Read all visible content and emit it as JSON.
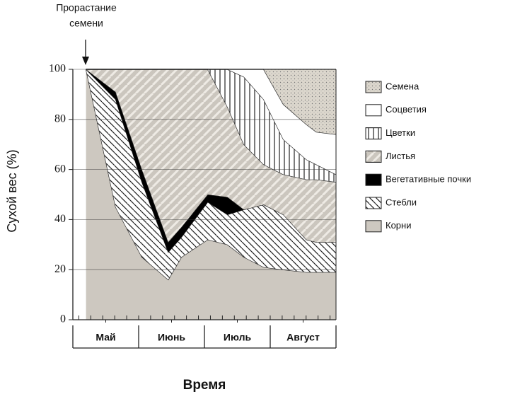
{
  "chart_data": {
    "type": "stacked-area",
    "annotation": [
      "Прорастание",
      "семени"
    ],
    "ylabel": "Сухой вес (%)",
    "xlabel": "Время",
    "x": [
      0.2,
      0.65,
      1.05,
      1.45,
      1.65,
      2.05,
      2.35,
      2.6,
      2.9,
      3.2,
      3.55,
      3.7,
      4.0
    ],
    "xlim": [
      0,
      4
    ],
    "xticks": [
      {
        "value": 0.5,
        "label": "Май"
      },
      {
        "value": 1.5,
        "label": "Июнь"
      },
      {
        "value": 2.5,
        "label": "Июль"
      },
      {
        "value": 3.5,
        "label": "Август"
      }
    ],
    "ylim": [
      0,
      100
    ],
    "yticks": [
      0,
      20,
      40,
      60,
      80,
      100
    ],
    "grid": true,
    "legend": "right",
    "series": [
      {
        "name": "Корни",
        "color": "#cdc8c0",
        "hatch": "none",
        "values": [
          100,
          45,
          25,
          16,
          25,
          32,
          30,
          25,
          21,
          20,
          19,
          19,
          19
        ]
      },
      {
        "name": "Стебли",
        "color": "#ffffff",
        "hatch": "diagonal",
        "values": [
          0,
          43,
          30,
          11,
          8,
          15,
          12,
          19,
          25,
          22,
          13,
          12,
          12
        ]
      },
      {
        "name": "Вегетативные почки",
        "color": "#000000",
        "hatch": "none",
        "values": [
          0,
          3,
          5,
          4,
          4,
          3,
          7,
          0,
          0,
          0,
          0,
          0,
          0
        ]
      },
      {
        "name": "Листья",
        "color": "#cbc6be",
        "hatch": "stripes",
        "values": [
          0,
          9,
          40,
          69,
          63,
          50,
          36,
          26,
          16,
          16,
          24,
          25,
          24
        ]
      },
      {
        "name": "Цветки",
        "color": "#ffffff",
        "hatch": "vertical",
        "values": [
          0,
          0,
          0,
          0,
          0,
          0,
          15,
          27,
          26,
          14,
          8,
          6,
          3
        ]
      },
      {
        "name": "Соцветия",
        "color": "#ffffff",
        "hatch": "none",
        "values": [
          0,
          0,
          0,
          0,
          0,
          0,
          0,
          3,
          12,
          14,
          14,
          13,
          16
        ]
      },
      {
        "name": "Семена",
        "color": "#dcd7cd",
        "hatch": "dots",
        "values": [
          0,
          0,
          0,
          0,
          0,
          0,
          0,
          0,
          0,
          14,
          22,
          25,
          26
        ]
      }
    ]
  }
}
